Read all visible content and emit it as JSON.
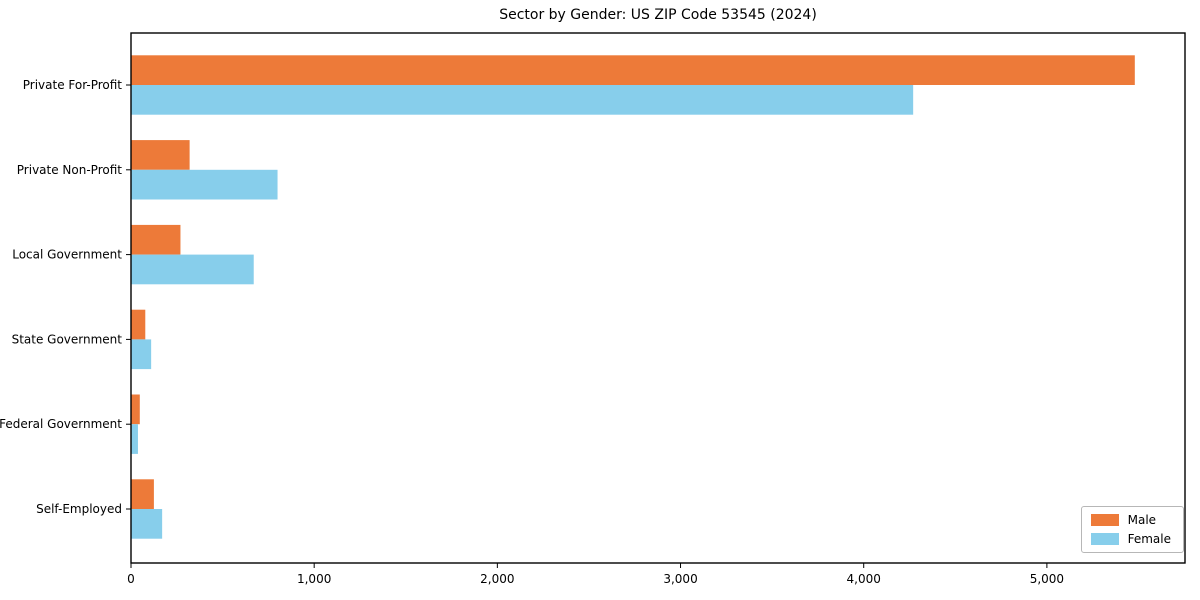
{
  "chart_data": {
    "type": "bar",
    "orientation": "horizontal",
    "title": "Sector by Gender: US ZIP Code 53545 (2024)",
    "categories": [
      "Private For-Profit",
      "Private Non-Profit",
      "Local Government",
      "State Government",
      "Federal Government",
      "Self-Employed"
    ],
    "series": [
      {
        "name": "Male",
        "color": "#ED7A39",
        "values": [
          5480,
          320,
          270,
          78,
          48,
          125
        ]
      },
      {
        "name": "Female",
        "color": "#87CEEB",
        "values": [
          4270,
          800,
          670,
          110,
          38,
          170
        ]
      }
    ],
    "xlabel": "",
    "ylabel": "",
    "xlim": [
      0,
      5754
    ],
    "xticks": [
      {
        "value": 0,
        "label": "0"
      },
      {
        "value": 1000,
        "label": "1,000"
      },
      {
        "value": 2000,
        "label": "2,000"
      },
      {
        "value": 3000,
        "label": "3,000"
      },
      {
        "value": 4000,
        "label": "4,000"
      },
      {
        "value": 5000,
        "label": "5,000"
      }
    ],
    "legend_position": "lower right",
    "grid": false,
    "axis_color": "#000000",
    "background_color": "#ffffff"
  }
}
